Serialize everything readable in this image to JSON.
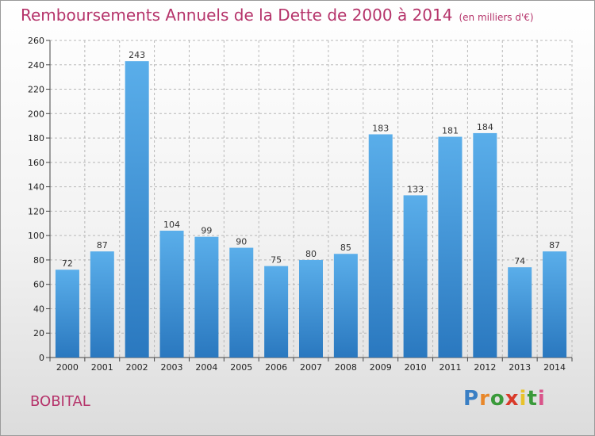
{
  "header": {
    "title": "Remboursements Annuels de la Dette de 2000 à 2014",
    "unit": "(en milliers d'€)"
  },
  "footer": {
    "location": "BOBITAL",
    "logo_letters": [
      "P",
      "r",
      "o",
      "x",
      "i",
      "t",
      "i"
    ],
    "logo_colors": [
      "#3a7fc4",
      "#e8872a",
      "#3a9a3a",
      "#d93a2a",
      "#e8c22a",
      "#3a9a3a",
      "#d9548a"
    ]
  },
  "colors": {
    "bar_top": "#5aaeea",
    "bar_bottom": "#2a78bf",
    "grid": "#b8b8b8",
    "title": "#b5336a"
  },
  "chart_data": {
    "type": "bar",
    "title": "Remboursements Annuels de la Dette de 2000 à 2014",
    "categories": [
      "2000",
      "2001",
      "2002",
      "2003",
      "2004",
      "2005",
      "2006",
      "2007",
      "2008",
      "2009",
      "2010",
      "2011",
      "2012",
      "2013",
      "2014"
    ],
    "values": [
      72,
      87,
      243,
      104,
      99,
      90,
      75,
      80,
      85,
      183,
      133,
      181,
      184,
      74,
      87
    ],
    "ylim": [
      0,
      260
    ],
    "yticks": [
      0,
      20,
      40,
      60,
      80,
      100,
      120,
      140,
      160,
      180,
      200,
      220,
      240,
      260
    ],
    "grid": true,
    "data_labels": true
  }
}
